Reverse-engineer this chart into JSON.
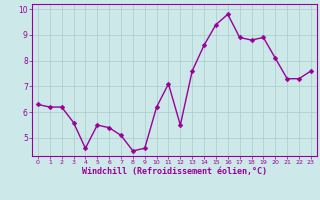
{
  "x": [
    0,
    1,
    2,
    3,
    4,
    5,
    6,
    7,
    8,
    9,
    10,
    11,
    12,
    13,
    14,
    15,
    16,
    17,
    18,
    19,
    20,
    21,
    22,
    23
  ],
  "y": [
    6.3,
    6.2,
    6.2,
    5.6,
    4.6,
    5.5,
    5.4,
    5.1,
    4.5,
    4.6,
    6.2,
    7.1,
    5.5,
    7.6,
    8.6,
    9.4,
    9.8,
    8.9,
    8.8,
    8.9,
    8.1,
    7.3,
    7.3,
    7.6
  ],
  "line_color": "#990099",
  "marker_color": "#990099",
  "bg_color": "#cce8e8",
  "grid_color": "#aacccc",
  "xlabel": "Windchill (Refroidissement éolien,°C)",
  "xlabel_color": "#990099",
  "tick_color": "#990099",
  "xlim": [
    -0.5,
    23.5
  ],
  "ylim": [
    4.3,
    10.2
  ],
  "yticks": [
    5,
    6,
    7,
    8,
    9,
    10
  ],
  "xticks": [
    0,
    1,
    2,
    3,
    4,
    5,
    6,
    7,
    8,
    9,
    10,
    11,
    12,
    13,
    14,
    15,
    16,
    17,
    18,
    19,
    20,
    21,
    22,
    23
  ],
  "border_color": "#990099",
  "marker_size": 2.5,
  "line_width": 1.0
}
